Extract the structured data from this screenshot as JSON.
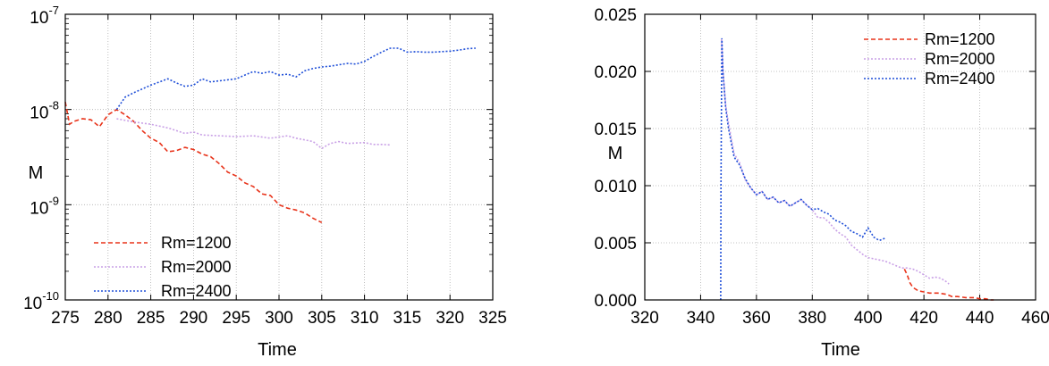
{
  "chart_data": [
    {
      "type": "line",
      "xlabel": "Time",
      "ylabel": "M",
      "xlim": [
        275,
        325
      ],
      "ylim": [
        1e-10,
        1e-07
      ],
      "yscale": "log",
      "grid": true,
      "legend_position": "bottom-left",
      "xticks": [
        "275",
        "280",
        "285",
        "290",
        "295",
        "300",
        "305",
        "310",
        "315",
        "320",
        "325"
      ],
      "yticks": [
        {
          "base": "10",
          "exp": "-10"
        },
        {
          "base": "10",
          "exp": "-9"
        },
        {
          "base": "10",
          "exp": "-8"
        },
        {
          "base": "10",
          "exp": "-7"
        }
      ],
      "series": [
        {
          "name": "Rm=1200",
          "color": "#e8331a",
          "dash": "dashed",
          "x": [
            275,
            275.5,
            276,
            277,
            278,
            279,
            280,
            281,
            282,
            283,
            284,
            285,
            286,
            287,
            288,
            289,
            290,
            291,
            292,
            293,
            294,
            295,
            296,
            297,
            298,
            299,
            300,
            301,
            302,
            303,
            304,
            305
          ],
          "y": [
            1.2e-08,
            7e-09,
            7.5e-09,
            8e-09,
            7.8e-09,
            6.6e-09,
            8.8e-09,
            1e-08,
            8.8e-09,
            7.5e-09,
            6e-09,
            5e-09,
            4.5e-09,
            3.6e-09,
            3.7e-09,
            4e-09,
            3.8e-09,
            3.4e-09,
            3.2e-09,
            2.7e-09,
            2.2e-09,
            2e-09,
            1.7e-09,
            1.55e-09,
            1.3e-09,
            1.25e-09,
            1e-09,
            9.2e-10,
            8.8e-10,
            8.2e-10,
            7.2e-10,
            6.5e-10
          ]
        },
        {
          "name": "Rm=2000",
          "color": "#c9a0e6",
          "dash": "dotted",
          "x": [
            281,
            283,
            285,
            287,
            288,
            289,
            290,
            291,
            293,
            295,
            297,
            299,
            301,
            302,
            303,
            304,
            305,
            306,
            307,
            308,
            310,
            311,
            312,
            313
          ],
          "y": [
            8e-09,
            7.4e-09,
            7e-09,
            6.4e-09,
            6e-09,
            5.6e-09,
            5.8e-09,
            5.4e-09,
            5.3e-09,
            5.2e-09,
            5.3e-09,
            5e-09,
            5.3e-09,
            5e-09,
            4.8e-09,
            4.6e-09,
            3.9e-09,
            4.4e-09,
            4.6e-09,
            4.4e-09,
            4.5e-09,
            4.3e-09,
            4.3e-09,
            4.25e-09
          ]
        },
        {
          "name": "Rm=2400",
          "color": "#1f4fd8",
          "dash": "dotted",
          "x": [
            281,
            282,
            283,
            285,
            287,
            288,
            289,
            290,
            291,
            292,
            293,
            294,
            295,
            296,
            297,
            298,
            299,
            300,
            301,
            302,
            303,
            304,
            305,
            306,
            307,
            308,
            309,
            310,
            311,
            312,
            313,
            314,
            315,
            316,
            317,
            318,
            319,
            320,
            321,
            322,
            323
          ],
          "y": [
            1e-08,
            1.35e-08,
            1.5e-08,
            1.8e-08,
            2.1e-08,
            1.9e-08,
            1.75e-08,
            1.8e-08,
            2.1e-08,
            1.95e-08,
            2e-08,
            2.05e-08,
            2.1e-08,
            2.3e-08,
            2.5e-08,
            2.4e-08,
            2.5e-08,
            2.3e-08,
            2.35e-08,
            2.2e-08,
            2.55e-08,
            2.7e-08,
            2.8e-08,
            2.85e-08,
            2.95e-08,
            3.05e-08,
            3e-08,
            3.2e-08,
            3.6e-08,
            4e-08,
            4.4e-08,
            4.4e-08,
            4e-08,
            4.05e-08,
            4e-08,
            4e-08,
            4.05e-08,
            4.1e-08,
            4.2e-08,
            4.35e-08,
            4.4e-08
          ]
        }
      ]
    },
    {
      "type": "line",
      "xlabel": "Time",
      "ylabel": "M",
      "xlim": [
        320,
        460
      ],
      "ylim": [
        0,
        0.025
      ],
      "yscale": "linear",
      "grid": true,
      "legend_position": "top-right",
      "xticks": [
        "320",
        "340",
        "360",
        "380",
        "400",
        "420",
        "440",
        "460"
      ],
      "yticks": [
        "0.000",
        "0.005",
        "0.010",
        "0.015",
        "0.020",
        "0.025"
      ],
      "series": [
        {
          "name": "Rm=1200",
          "color": "#e8331a",
          "dash": "dashed",
          "x": [
            413,
            414,
            415,
            416,
            418,
            420,
            422,
            425,
            428,
            430,
            432,
            435,
            438,
            440,
            442,
            444,
            445
          ],
          "y": [
            0.0027,
            0.0022,
            0.0015,
            0.0011,
            0.0008,
            0.0007,
            0.0006,
            0.0006,
            0.0005,
            0.0003,
            0.0003,
            0.0002,
            0.0002,
            0.0001,
            0.0001,
            0.0,
            0.0
          ]
        },
        {
          "name": "Rm=2000",
          "color": "#c9a0e6",
          "dash": "dotted",
          "x": [
            347.5,
            348,
            349,
            350,
            352,
            354,
            356,
            358,
            360,
            362,
            364,
            366,
            368,
            370,
            372,
            374,
            376,
            378,
            380,
            382,
            384,
            386,
            388,
            390,
            392,
            394,
            396,
            398,
            400,
            402,
            404,
            406,
            408,
            410,
            412,
            414,
            416,
            418,
            420,
            422,
            424,
            426,
            428,
            429
          ],
          "y": [
            0.0228,
            0.02,
            0.017,
            0.0155,
            0.0128,
            0.012,
            0.0105,
            0.0098,
            0.0092,
            0.0095,
            0.0088,
            0.009,
            0.0085,
            0.0087,
            0.0082,
            0.0085,
            0.0088,
            0.0083,
            0.0079,
            0.0072,
            0.0072,
            0.0068,
            0.0062,
            0.0058,
            0.0055,
            0.0048,
            0.0044,
            0.004,
            0.0037,
            0.0036,
            0.0035,
            0.0034,
            0.0032,
            0.003,
            0.0028,
            0.0028,
            0.0027,
            0.0025,
            0.0022,
            0.0019,
            0.002,
            0.0019,
            0.0016,
            0.0014
          ]
        },
        {
          "name": "Rm=2400",
          "color": "#1f4fd8",
          "dash": "dotted",
          "x": [
            347.2,
            347.3,
            347.6,
            348,
            349,
            350,
            352,
            354,
            356,
            358,
            360,
            362,
            364,
            366,
            368,
            370,
            372,
            374,
            376,
            378,
            380,
            382,
            384,
            386,
            388,
            390,
            392,
            394,
            396,
            398,
            400,
            402,
            404,
            406
          ],
          "y": [
            0.0,
            0.01,
            0.0229,
            0.02,
            0.0168,
            0.015,
            0.0125,
            0.0118,
            0.0106,
            0.0098,
            0.0092,
            0.0095,
            0.0088,
            0.009,
            0.0085,
            0.0087,
            0.0082,
            0.0085,
            0.0088,
            0.0083,
            0.0079,
            0.008,
            0.0077,
            0.0075,
            0.007,
            0.0068,
            0.0065,
            0.006,
            0.0058,
            0.0055,
            0.0063,
            0.0055,
            0.0052,
            0.0054
          ]
        }
      ]
    }
  ]
}
